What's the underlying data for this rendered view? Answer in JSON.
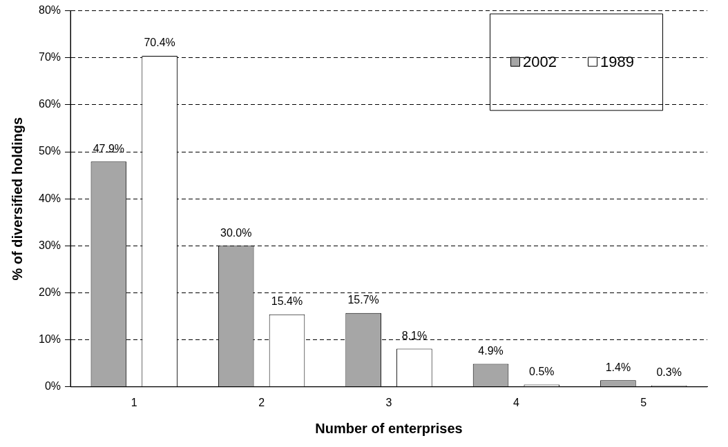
{
  "chart_data": {
    "type": "bar",
    "xlabel": "Number of enterprises",
    "ylabel": "% of diversified holdings",
    "categories": [
      "1",
      "2",
      "3",
      "4",
      "5"
    ],
    "series": [
      {
        "name": "2002",
        "color": "#a6a6a6",
        "values": [
          47.9,
          30.0,
          15.7,
          4.9,
          1.4
        ],
        "value_labels": [
          "47.9%",
          "30.0%",
          "15.7%",
          "4.9%",
          "1.4%"
        ]
      },
      {
        "name": "1989",
        "color": "#ffffff",
        "values": [
          70.4,
          15.4,
          8.1,
          0.5,
          0.3
        ],
        "value_labels": [
          "70.4%",
          "15.4%",
          "8.1%",
          "0.5%",
          "0.3%"
        ]
      }
    ],
    "ylim": [
      0,
      80
    ],
    "yticks": [
      {
        "value": 0,
        "label": "0%"
      },
      {
        "value": 10,
        "label": "10%"
      },
      {
        "value": 20,
        "label": "20%"
      },
      {
        "value": 30,
        "label": "30%"
      },
      {
        "value": 40,
        "label": "40%"
      },
      {
        "value": 50,
        "label": "50%"
      },
      {
        "value": 60,
        "label": "60%"
      },
      {
        "value": 70,
        "label": "70%"
      },
      {
        "value": 80,
        "label": "80%"
      }
    ],
    "grid": "y",
    "legend": "top right"
  }
}
